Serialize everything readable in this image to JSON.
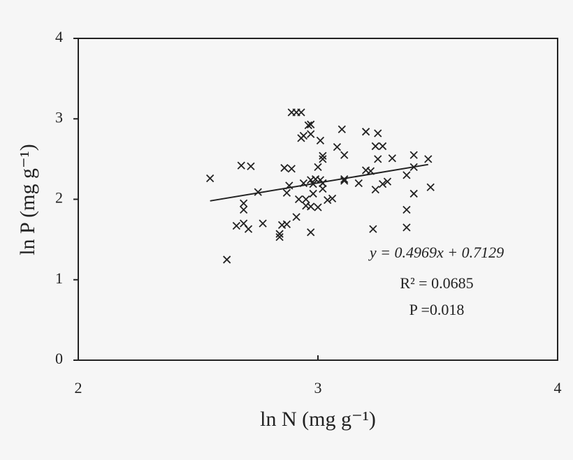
{
  "chart_data": {
    "type": "scatter",
    "xlabel": "ln N (mg g⁻¹)",
    "ylabel": "ln P (mg g⁻¹)",
    "xlim": [
      2,
      4
    ],
    "ylim": [
      0,
      4
    ],
    "xticks": [
      2,
      3,
      4
    ],
    "yticks": [
      0,
      1,
      2,
      3,
      4
    ],
    "grid": false,
    "marker": "x",
    "color": "#222222",
    "x": [
      2.55,
      2.62,
      2.68,
      2.72,
      2.69,
      2.69,
      2.66,
      2.69,
      2.71,
      2.75,
      2.77,
      2.84,
      2.84,
      2.85,
      2.87,
      2.86,
      2.89,
      2.87,
      2.88,
      2.89,
      2.91,
      2.93,
      2.91,
      2.92,
      2.93,
      2.94,
      2.94,
      2.95,
      2.95,
      2.96,
      2.97,
      2.97,
      2.97,
      2.98,
      2.97,
      2.97,
      2.98,
      2.99,
      3.0,
      3.0,
      3.01,
      3.01,
      3.02,
      3.02,
      3.02,
      3.02,
      3.02,
      3.04,
      3.06,
      3.08,
      3.1,
      3.11,
      3.11,
      3.11,
      3.17,
      3.2,
      3.2,
      3.22,
      3.23,
      3.24,
      3.25,
      3.24,
      3.25,
      3.27,
      3.27,
      3.29,
      3.31,
      3.37,
      3.37,
      3.37,
      3.4,
      3.4,
      3.4,
      3.46,
      3.47
    ],
    "y": [
      2.26,
      1.25,
      2.42,
      2.41,
      1.95,
      1.87,
      1.67,
      1.7,
      1.63,
      2.09,
      1.7,
      1.53,
      1.57,
      1.68,
      1.69,
      2.39,
      2.38,
      2.08,
      2.17,
      3.08,
      3.08,
      3.08,
      1.78,
      2.0,
      2.76,
      2.79,
      2.2,
      2.0,
      1.92,
      2.92,
      2.93,
      2.81,
      2.24,
      2.19,
      1.91,
      1.59,
      2.07,
      2.25,
      2.4,
      1.9,
      2.24,
      2.73,
      2.54,
      2.2,
      2.2,
      2.5,
      2.13,
      1.99,
      2.01,
      2.65,
      2.87,
      2.55,
      2.25,
      2.23,
      2.2,
      2.84,
      2.36,
      2.35,
      1.63,
      2.12,
      2.82,
      2.66,
      2.5,
      2.19,
      2.66,
      2.22,
      2.51,
      1.87,
      1.65,
      2.3,
      2.4,
      2.55,
      2.07,
      2.5,
      2.15
    ],
    "fit": {
      "slope": 0.4969,
      "intercept": 0.7129,
      "xlim": [
        2.55,
        3.46
      ]
    },
    "annotations": [
      "y = 0.4969x + 0.7129",
      "R² = 0.0685",
      "P =0.018"
    ]
  }
}
